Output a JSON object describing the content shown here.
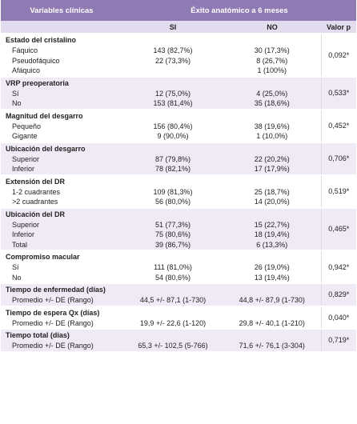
{
  "header": {
    "variables": "Variables clínicas",
    "outcome": "Éxito anatómico a 6 meses"
  },
  "subheader": {
    "yes": "SI",
    "no": "NO",
    "p": "Valor p"
  },
  "groups": [
    {
      "title": "Estado del cristalino",
      "p": "0,092*",
      "rows": [
        {
          "label": "Fáquico",
          "si": "143 (82,7%)",
          "no": "30 (17,3%)"
        },
        {
          "label": "Pseudofáquico",
          "si": "22 (73,3%)",
          "no": "8 (26,7%)"
        },
        {
          "label": "Afáquico",
          "si": "",
          "no": "1 (100%)"
        }
      ]
    },
    {
      "title": "VRP preoperatoria",
      "p": "0,533*",
      "rows": [
        {
          "label": "Sí",
          "si": "12 (75,0%)",
          "no": "4 (25,0%)"
        },
        {
          "label": "No",
          "si": "153 (81,4%)",
          "no": "35 (18,6%)"
        }
      ]
    },
    {
      "title": "Magnitud del desgarro",
      "p": "0,452*",
      "rows": [
        {
          "label": "Pequeño",
          "si": "156 (80,4%)",
          "no": "38 (19,6%)"
        },
        {
          "label": "Gigante",
          "si": "9 (90,0%)",
          "no": "1 (10,0%)"
        }
      ]
    },
    {
      "title": "Ubicación del desgarro",
      "p": "0,706*",
      "rows": [
        {
          "label": "Superior",
          "si": "87 (79,8%)",
          "no": "22 (20,2%)"
        },
        {
          "label": "Inferior",
          "si": "78 (82,1%)",
          "no": "17 (17,9%)"
        }
      ]
    },
    {
      "title": "Extensión del DR",
      "p": "0,519*",
      "rows": [
        {
          "label": "1-2 cuadrantes",
          "si": "109 (81,3%)",
          "no": "25 (18,7%)"
        },
        {
          "label": ">2 cuadrantes",
          "si": "56 (80,0%)",
          "no": "14 (20,0%)"
        }
      ]
    },
    {
      "title": "Ubicación del DR",
      "p": "0,465*",
      "rows": [
        {
          "label": "Superior",
          "si": "51 (77,3%)",
          "no": "15 (22,7%)"
        },
        {
          "label": "Inferior",
          "si": "75 (80,6%)",
          "no": "18 (19,4%)"
        },
        {
          "label": "Total",
          "si": "39 (86,7%)",
          "no": "6 (13,3%)"
        }
      ]
    },
    {
      "title": "Compromiso macular",
      "p": "0,942*",
      "rows": [
        {
          "label": "Sí",
          "si": "111 (81,0%)",
          "no": "26 (19,0%)"
        },
        {
          "label": "No",
          "si": "54 (80,6%)",
          "no": "13 (19,4%)"
        }
      ]
    },
    {
      "title": "Tiempo de enfermedad (días)",
      "p": "0,829*",
      "rows": [
        {
          "label": "Promedio +/- DE (Rango)",
          "si": "44,5 +/- 87,1 (1-730)",
          "no": "44,8 +/- 87,9 (1-730)"
        }
      ]
    },
    {
      "title": "Tiempo de espera Qx (días)",
      "p": "0,040*",
      "rows": [
        {
          "label": "Promedio +/- DE (Rango)",
          "si": "19,9 +/- 22,6 (1-120)",
          "no": "29,8 +/- 40,1 (1-210)"
        }
      ]
    },
    {
      "title": "Tiempo total (días)",
      "p": "0,719*",
      "rows": [
        {
          "label": "Promedio +/- DE (Rango)",
          "si": "65,3 +/- 102,5 (5-766)",
          "no": "71,6 +/- 76,1 (3-304)"
        }
      ]
    }
  ]
}
